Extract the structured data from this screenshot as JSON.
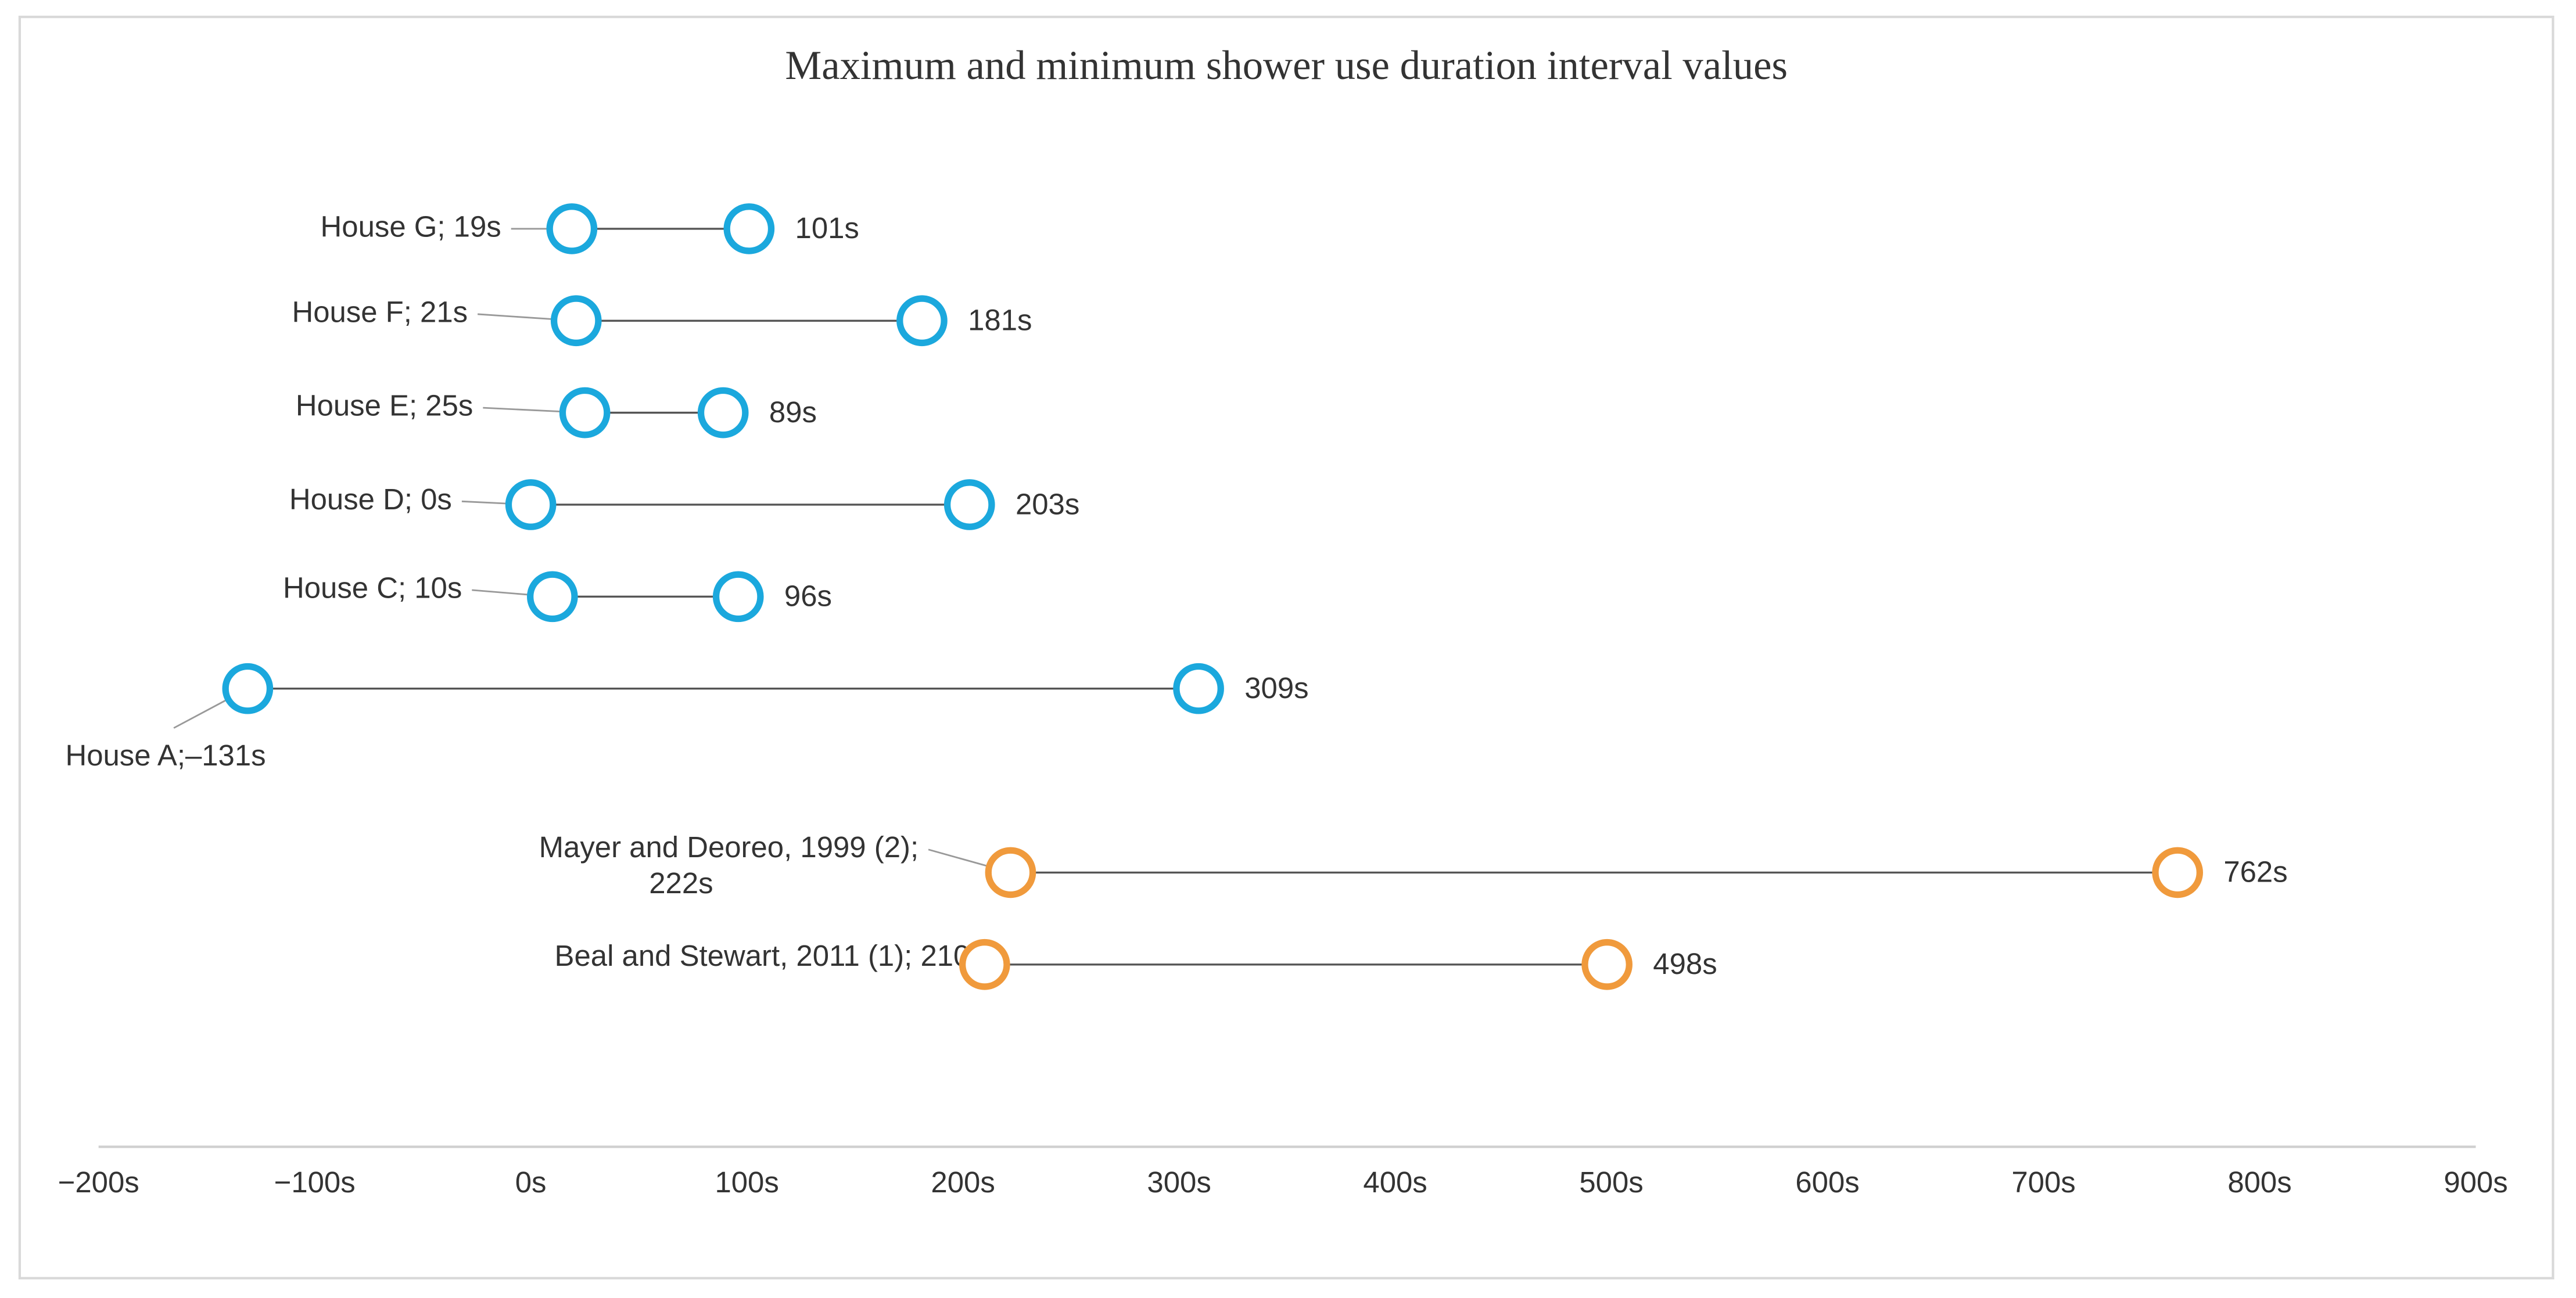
{
  "chart_data": {
    "type": "dumbbell",
    "title": "Maximum and minimum shower use duration interval values",
    "min_values": [
      19,
      21,
      25,
      0,
      10,
      -131,
      222,
      210
    ],
    "min_value_labels": [
      "House G; 19s",
      "House F; 21s",
      "House E; 25s",
      "House D; 0s",
      "House C; 10s",
      "House A;‒131s",
      "Mayer and Deoreo, 1999 (2);\n222s",
      "Beal and Stewart, 2011 (1); 210s"
    ],
    "max_values": [
      101,
      181,
      89,
      203,
      96,
      309,
      762,
      498
    ],
    "max_value_labels": [
      "101s",
      "181s",
      "89s",
      "203s",
      "96s",
      "309s",
      "762s",
      "498s"
    ],
    "colors": [
      "#1ba8dd",
      "#1ba8dd",
      "#1ba8dd",
      "#1ba8dd",
      "#1ba8dd",
      "#1ba8dd",
      "#f09a3c",
      "#f09a3c"
    ],
    "xlim": [
      -200,
      900
    ],
    "xticks": [
      {
        "value": -200,
        "label": "−200s"
      },
      {
        "value": -100,
        "label": "−100s"
      },
      {
        "value": 0,
        "label": "0s"
      },
      {
        "value": 100,
        "label": "100s"
      },
      {
        "value": 200,
        "label": "200s"
      },
      {
        "value": 300,
        "label": "300s"
      },
      {
        "value": 400,
        "label": "400s"
      },
      {
        "value": 500,
        "label": "500s"
      },
      {
        "value": 600,
        "label": "600s"
      },
      {
        "value": 700,
        "label": "700s"
      },
      {
        "value": 800,
        "label": "800s"
      },
      {
        "value": 900,
        "label": "900s"
      }
    ]
  }
}
